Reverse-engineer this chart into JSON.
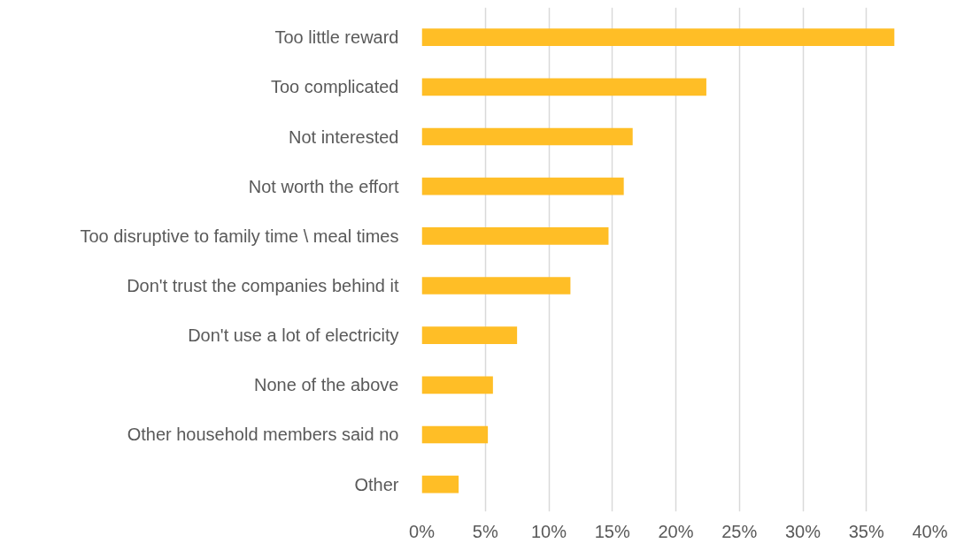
{
  "chart_data": {
    "type": "bar",
    "orientation": "horizontal",
    "categories": [
      "Too little reward",
      "Too complicated",
      "Not interested",
      "Not worth the effort",
      "Too disruptive to family time \\ meal times",
      "Don't trust the companies behind it",
      "Don't use a lot of electricity",
      "None of the above",
      "Other household members said no",
      "Other"
    ],
    "values": [
      37.2,
      22.4,
      16.6,
      15.9,
      14.7,
      11.7,
      7.5,
      5.6,
      5.2,
      2.9
    ],
    "color": "#ffbe26",
    "xlim": [
      0,
      40
    ],
    "xticks": [
      {
        "value": 0,
        "label": "0%"
      },
      {
        "value": 5,
        "label": "5%"
      },
      {
        "value": 10,
        "label": "10%"
      },
      {
        "value": 15,
        "label": "15%"
      },
      {
        "value": 20,
        "label": "20%"
      },
      {
        "value": 25,
        "label": "25%"
      },
      {
        "value": 30,
        "label": "30%"
      },
      {
        "value": 35,
        "label": "35%"
      },
      {
        "value": 40,
        "label": "40%"
      }
    ],
    "grid": "x"
  }
}
